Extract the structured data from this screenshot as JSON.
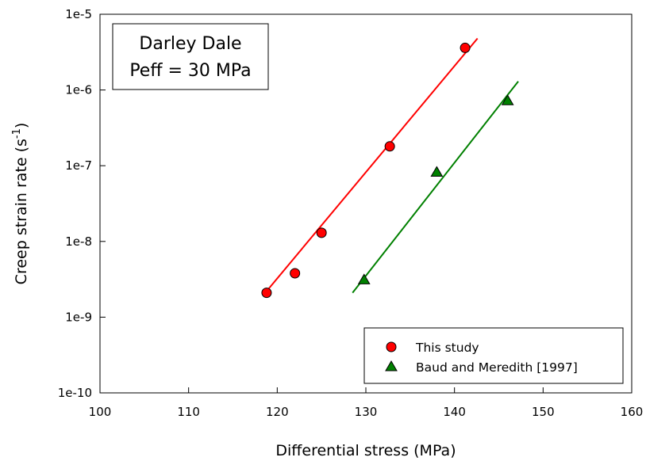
{
  "chart_data": {
    "type": "scatter",
    "xlabel": "Differential stress (MPa)",
    "ylabel": "Creep strain rate (s",
    "ylabel_sup": "-1",
    "ylabel_end": ")",
    "xlim": [
      100,
      160
    ],
    "ylim": [
      1e-10,
      1e-05
    ],
    "yscale": "log",
    "grid": false,
    "x_ticks": [
      100,
      110,
      120,
      130,
      140,
      150,
      160
    ],
    "x_tick_labels": [
      "100",
      "110",
      "120",
      "130",
      "140",
      "150",
      "160"
    ],
    "y_ticks": [
      1e-10,
      1e-09,
      1e-08,
      1e-07,
      1e-06,
      1e-05
    ],
    "y_tick_labels": [
      "1e-10",
      "1e-9",
      "1e-8",
      "1e-7",
      "1e-6",
      "1e-5"
    ],
    "annotation": [
      "Darley Dale",
      "Peff = 30 MPa"
    ],
    "legend_position": "bottom-right",
    "series": [
      {
        "name": "This study",
        "marker": "circle",
        "color": "#ff0000",
        "points": [
          {
            "x": 118.8,
            "y": 2.1e-09
          },
          {
            "x": 122.0,
            "y": 3.8e-09
          },
          {
            "x": 125.0,
            "y": 1.3e-08
          },
          {
            "x": 132.7,
            "y": 1.8e-07
          },
          {
            "x": 141.2,
            "y": 3.6e-06
          }
        ],
        "fit": [
          {
            "x": 118.5,
            "y": 2e-09
          },
          {
            "x": 142.6,
            "y": 4.8e-06
          }
        ]
      },
      {
        "name": "Baud and Meredith [1997]",
        "marker": "triangle",
        "color": "#008000",
        "points": [
          {
            "x": 129.8,
            "y": 3.1e-09
          },
          {
            "x": 138.0,
            "y": 8.2e-08
          },
          {
            "x": 146.0,
            "y": 7.2e-07
          }
        ],
        "fit": [
          {
            "x": 128.5,
            "y": 2.1e-09
          },
          {
            "x": 147.2,
            "y": 1.3e-06
          }
        ]
      }
    ]
  }
}
